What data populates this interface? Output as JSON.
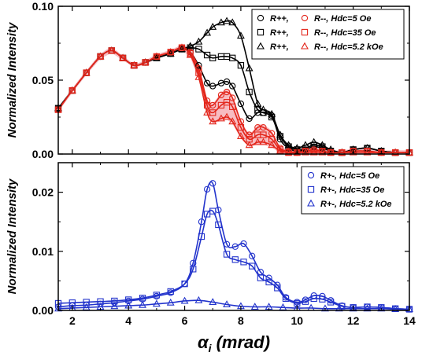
{
  "chart_data": [
    {
      "type": "line",
      "panel": "top",
      "ylabel": "Normalized Intensity",
      "xlim": [
        1.5,
        14
      ],
      "ylim": [
        0,
        0.1
      ],
      "yticks": [
        0.0,
        0.05,
        0.1
      ],
      "ytick_labels": [
        "0.00",
        "0.05",
        "0.10"
      ],
      "grid": false,
      "legend_position": "top-right",
      "colors": {
        "black": "#000000",
        "red": "#e3261b",
        "red_fill": "#f4a6ad"
      },
      "legend": [
        {
          "left": "R++,",
          "right": "R--, Hdc=5 Oe",
          "marker": "circle"
        },
        {
          "left": "R++,",
          "right": "R--, Hdc=35 Oe",
          "marker": "square"
        },
        {
          "left": "R++,",
          "right": "R--, Hdc=5.2 kOe",
          "marker": "triangle"
        }
      ],
      "series": [
        {
          "name": "R++, Hdc=5 Oe",
          "color": "black",
          "marker": "circle",
          "x": [
            1.5,
            2.0,
            2.5,
            3.0,
            3.4,
            3.8,
            4.2,
            4.6,
            5.0,
            5.5,
            5.9,
            6.2,
            6.5,
            6.8,
            7.0,
            7.3,
            7.5,
            7.7,
            8.0,
            8.3,
            8.6,
            8.8,
            9.1,
            9.4,
            9.7,
            10.0,
            10.3,
            10.6,
            10.9,
            11.2,
            11.6,
            12.0,
            12.5,
            13.0,
            13.5,
            14.0
          ],
          "y": [
            0.031,
            0.043,
            0.055,
            0.066,
            0.07,
            0.065,
            0.06,
            0.062,
            0.065,
            0.068,
            0.071,
            0.069,
            0.06,
            0.048,
            0.046,
            0.048,
            0.049,
            0.046,
            0.034,
            0.024,
            0.028,
            0.028,
            0.026,
            0.01,
            0.004,
            0.002,
            0.003,
            0.005,
            0.004,
            0.002,
            0.001,
            0.003,
            0.004,
            0.002,
            0.001,
            0.001
          ]
        },
        {
          "name": "R++, Hdc=35 Oe",
          "color": "black",
          "marker": "square",
          "x": [
            1.5,
            2.0,
            2.5,
            3.0,
            3.4,
            3.8,
            4.2,
            4.6,
            5.0,
            5.5,
            5.9,
            6.2,
            6.5,
            6.8,
            7.0,
            7.3,
            7.5,
            7.7,
            8.0,
            8.3,
            8.6,
            8.8,
            9.1,
            9.4,
            9.7,
            10.0,
            10.3,
            10.6,
            10.9,
            11.2,
            11.6,
            12.0,
            12.5,
            13.0,
            13.5,
            14.0
          ],
          "y": [
            0.031,
            0.043,
            0.055,
            0.066,
            0.07,
            0.065,
            0.06,
            0.062,
            0.065,
            0.068,
            0.071,
            0.072,
            0.071,
            0.067,
            0.065,
            0.066,
            0.066,
            0.065,
            0.06,
            0.042,
            0.03,
            0.028,
            0.025,
            0.012,
            0.005,
            0.003,
            0.004,
            0.006,
            0.005,
            0.002,
            0.001,
            0.003,
            0.004,
            0.002,
            0.001,
            0.001
          ]
        },
        {
          "name": "R++, Hdc=5.2 kOe",
          "color": "black",
          "marker": "triangle",
          "x": [
            1.5,
            2.0,
            2.5,
            3.0,
            3.4,
            3.8,
            4.2,
            4.6,
            5.0,
            5.5,
            5.9,
            6.2,
            6.5,
            6.8,
            7.0,
            7.3,
            7.5,
            7.7,
            8.0,
            8.3,
            8.6,
            8.8,
            9.1,
            9.4,
            9.7,
            10.0,
            10.3,
            10.6,
            10.9,
            11.2,
            11.6,
            12.0,
            12.5,
            13.0,
            13.5,
            14.0
          ],
          "y": [
            0.031,
            0.043,
            0.055,
            0.066,
            0.07,
            0.065,
            0.06,
            0.062,
            0.065,
            0.068,
            0.071,
            0.073,
            0.076,
            0.082,
            0.086,
            0.089,
            0.09,
            0.089,
            0.08,
            0.058,
            0.034,
            0.03,
            0.027,
            0.013,
            0.006,
            0.004,
            0.006,
            0.008,
            0.006,
            0.003,
            0.001,
            0.003,
            0.004,
            0.002,
            0.001,
            0.001
          ]
        },
        {
          "name": "R--, Hdc=5 Oe",
          "color": "red",
          "marker": "circle",
          "x": [
            1.5,
            2.0,
            2.5,
            3.0,
            3.4,
            3.8,
            4.2,
            4.6,
            5.0,
            5.5,
            5.9,
            6.2,
            6.5,
            6.8,
            7.0,
            7.3,
            7.5,
            7.7,
            8.0,
            8.3,
            8.6,
            8.8,
            9.1,
            9.4,
            9.7,
            10.0,
            10.3,
            10.6,
            10.9,
            11.2,
            11.6,
            12.0,
            12.5,
            13.0,
            13.5,
            14.0
          ],
          "y": [
            0.03,
            0.043,
            0.055,
            0.066,
            0.07,
            0.065,
            0.06,
            0.062,
            0.066,
            0.069,
            0.072,
            0.069,
            0.058,
            0.036,
            0.033,
            0.04,
            0.042,
            0.038,
            0.022,
            0.013,
            0.018,
            0.018,
            0.014,
            0.004,
            0.002,
            0.001,
            0.002,
            0.003,
            0.002,
            0.001,
            0.001,
            0.002,
            0.002,
            0.001,
            0.001,
            0.001
          ]
        },
        {
          "name": "R--, Hdc=35 Oe",
          "color": "red",
          "marker": "square",
          "x": [
            1.5,
            2.0,
            2.5,
            3.0,
            3.4,
            3.8,
            4.2,
            4.6,
            5.0,
            5.5,
            5.9,
            6.2,
            6.5,
            6.8,
            7.0,
            7.3,
            7.5,
            7.7,
            8.0,
            8.3,
            8.6,
            8.8,
            9.1,
            9.4,
            9.7,
            10.0,
            10.3,
            10.6,
            10.9,
            11.2,
            11.6,
            12.0,
            12.5,
            13.0,
            13.5,
            14.0
          ],
          "y": [
            0.03,
            0.043,
            0.055,
            0.066,
            0.07,
            0.065,
            0.06,
            0.062,
            0.066,
            0.069,
            0.072,
            0.068,
            0.055,
            0.033,
            0.028,
            0.033,
            0.035,
            0.032,
            0.018,
            0.01,
            0.013,
            0.013,
            0.01,
            0.003,
            0.001,
            0.001,
            0.002,
            0.002,
            0.002,
            0.001,
            0.001,
            0.002,
            0.002,
            0.001,
            0.001,
            0.001
          ]
        },
        {
          "name": "R--, Hdc=5.2 kOe",
          "color": "red",
          "marker": "triangle",
          "x": [
            1.5,
            2.0,
            2.5,
            3.0,
            3.4,
            3.8,
            4.2,
            4.6,
            5.0,
            5.5,
            5.9,
            6.2,
            6.5,
            6.8,
            7.0,
            7.3,
            7.5,
            7.7,
            8.0,
            8.3,
            8.6,
            8.8,
            9.1,
            9.4,
            9.7,
            10.0,
            10.3,
            10.6,
            10.9,
            11.2,
            11.6,
            12.0,
            12.5,
            13.0,
            13.5,
            14.0
          ],
          "y": [
            0.03,
            0.043,
            0.055,
            0.066,
            0.07,
            0.065,
            0.06,
            0.062,
            0.066,
            0.069,
            0.072,
            0.067,
            0.052,
            0.028,
            0.022,
            0.024,
            0.025,
            0.022,
            0.012,
            0.006,
            0.008,
            0.008,
            0.006,
            0.002,
            0.001,
            0.001,
            0.001,
            0.001,
            0.001,
            0.001,
            0.001,
            0.001,
            0.001,
            0.001,
            0.001,
            0.001
          ]
        }
      ]
    },
    {
      "type": "line",
      "panel": "bottom",
      "xlabel": "αi (mrad)",
      "xlabel_main": "α",
      "xlabel_sub": "i",
      "xlabel_unit": " (mrad)",
      "ylabel": "Normalized Intensity",
      "xlim": [
        1.5,
        14
      ],
      "ylim": [
        0,
        0.025
      ],
      "xticks": [
        2,
        4,
        6,
        8,
        10,
        12,
        14
      ],
      "xtick_labels": [
        "2",
        "4",
        "6",
        "8",
        "10",
        "12",
        "14"
      ],
      "yticks": [
        0.0,
        0.01,
        0.02
      ],
      "ytick_labels": [
        "0.00",
        "0.01",
        "0.02"
      ],
      "grid": false,
      "legend_position": "top-right",
      "colors": {
        "blue": "#2233cc"
      },
      "legend": [
        {
          "label": "R+-, Hdc=5 Oe",
          "marker": "circle"
        },
        {
          "label": "R+-, Hdc=35 Oe",
          "marker": "square"
        },
        {
          "label": "R+-, Hdc=5.2 kOe",
          "marker": "triangle"
        }
      ],
      "series": [
        {
          "name": "R+-, Hdc=5 Oe",
          "color": "blue",
          "marker": "circle",
          "x": [
            1.5,
            2.0,
            2.5,
            3.0,
            3.5,
            4.0,
            4.5,
            5.0,
            5.5,
            6.0,
            6.3,
            6.6,
            6.8,
            7.0,
            7.2,
            7.5,
            7.8,
            8.1,
            8.4,
            8.7,
            9.0,
            9.3,
            9.6,
            10.0,
            10.3,
            10.6,
            10.9,
            11.2,
            11.6,
            12.0,
            12.5,
            13.0,
            13.5,
            14.0
          ],
          "y": [
            0.0006,
            0.0008,
            0.0009,
            0.0011,
            0.0013,
            0.0016,
            0.0019,
            0.0024,
            0.003,
            0.0045,
            0.008,
            0.015,
            0.0205,
            0.0215,
            0.017,
            0.0112,
            0.0108,
            0.0113,
            0.0092,
            0.0065,
            0.0055,
            0.0043,
            0.0022,
            0.0014,
            0.0018,
            0.0025,
            0.0024,
            0.0017,
            0.0008,
            0.0005,
            0.0006,
            0.0005,
            0.0003,
            0.0002
          ]
        },
        {
          "name": "R+-, Hdc=35 Oe",
          "color": "blue",
          "marker": "square",
          "x": [
            1.5,
            2.0,
            2.5,
            3.0,
            3.5,
            4.0,
            4.5,
            5.0,
            5.5,
            6.0,
            6.3,
            6.6,
            6.8,
            7.0,
            7.2,
            7.5,
            7.8,
            8.1,
            8.4,
            8.7,
            9.0,
            9.3,
            9.6,
            10.0,
            10.3,
            10.6,
            10.9,
            11.2,
            11.6,
            12.0,
            12.5,
            13.0,
            13.5,
            14.0
          ],
          "y": [
            0.0012,
            0.0013,
            0.0014,
            0.0015,
            0.0016,
            0.0018,
            0.0021,
            0.0026,
            0.0032,
            0.0045,
            0.007,
            0.0125,
            0.0163,
            0.0168,
            0.0145,
            0.0095,
            0.0086,
            0.0082,
            0.0075,
            0.0055,
            0.0048,
            0.0038,
            0.002,
            0.0012,
            0.0015,
            0.002,
            0.0019,
            0.0014,
            0.0007,
            0.0005,
            0.0006,
            0.0005,
            0.0003,
            0.0002
          ]
        },
        {
          "name": "R+-, Hdc=5.2 kOe",
          "color": "blue",
          "marker": "triangle",
          "x": [
            1.5,
            2.0,
            2.5,
            3.0,
            3.5,
            4.0,
            4.5,
            5.0,
            5.5,
            6.0,
            6.5,
            7.0,
            7.5,
            8.0,
            8.5,
            9.0,
            9.5,
            10.0,
            10.5,
            11.0,
            11.5,
            12.0,
            12.5,
            13.0,
            13.5,
            14.0
          ],
          "y": [
            0.0003,
            0.0004,
            0.0005,
            0.0006,
            0.0007,
            0.0008,
            0.0009,
            0.0011,
            0.0013,
            0.0016,
            0.0017,
            0.0014,
            0.001,
            0.0007,
            0.0006,
            0.0006,
            0.0005,
            0.0004,
            0.0004,
            0.0003,
            0.0003,
            0.0003,
            0.0003,
            0.0003,
            0.0002,
            0.0002
          ]
        }
      ]
    }
  ]
}
